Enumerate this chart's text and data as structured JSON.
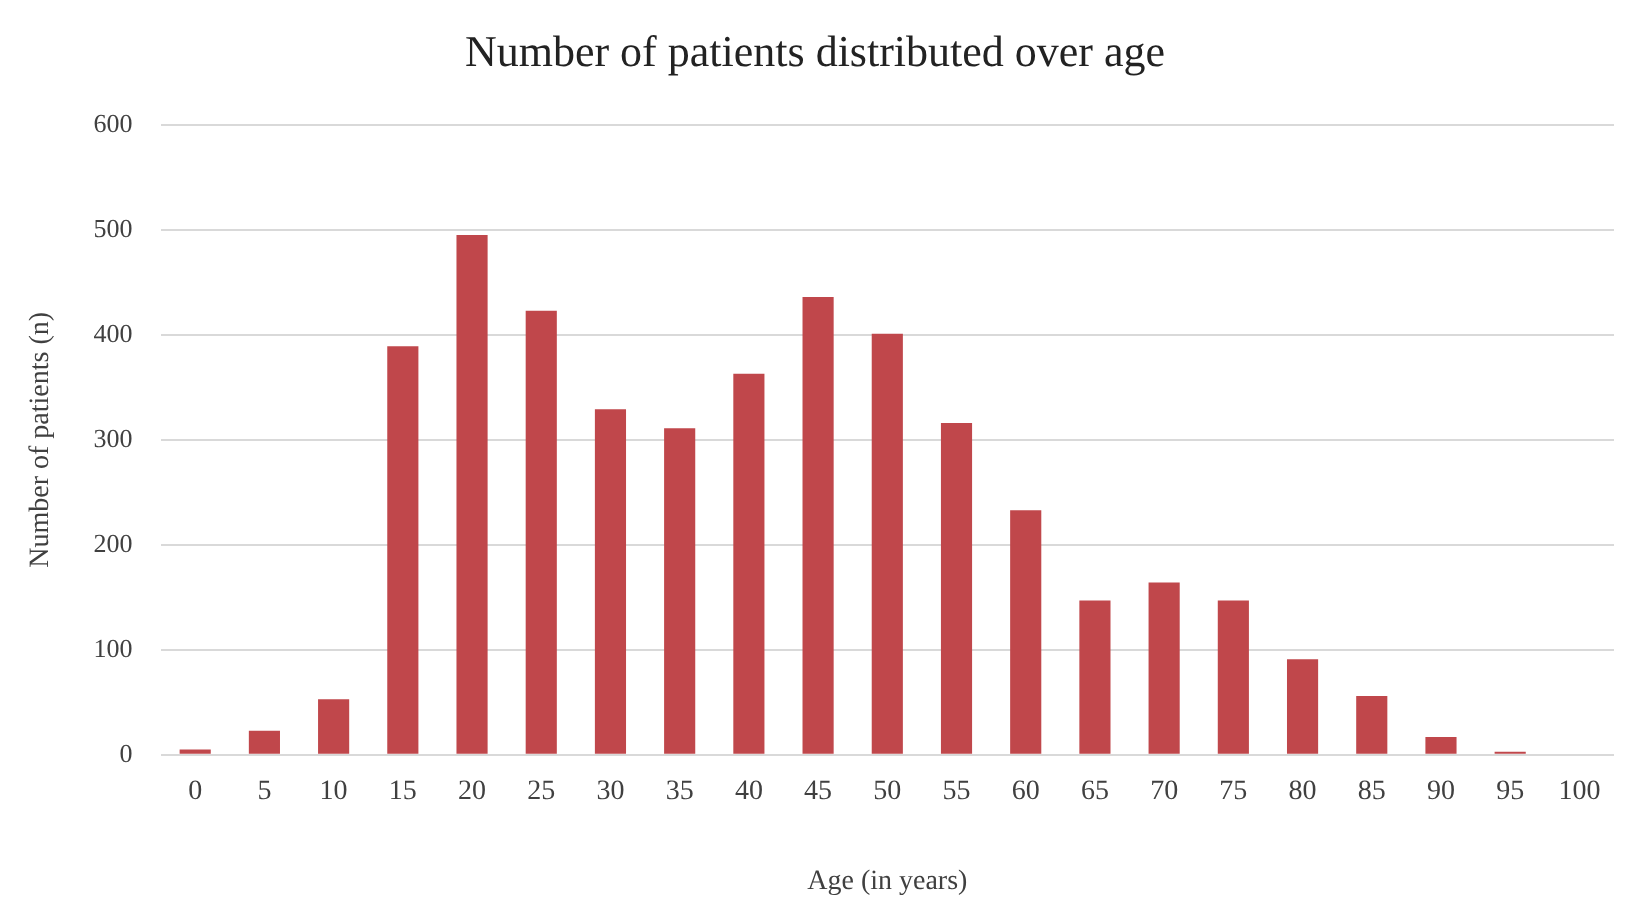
{
  "chart_data": {
    "type": "bar",
    "title": "Number of patients distributed over age",
    "xlabel": "Age (in years)",
    "ylabel": "Number of patients (n)",
    "categories": [
      "0",
      "5",
      "10",
      "15",
      "20",
      "25",
      "30",
      "35",
      "40",
      "45",
      "50",
      "55",
      "60",
      "65",
      "70",
      "75",
      "80",
      "85",
      "90",
      "95",
      "100"
    ],
    "values": [
      5,
      23,
      53,
      389,
      495,
      423,
      329,
      311,
      363,
      436,
      401,
      316,
      233,
      147,
      164,
      147,
      91,
      56,
      17,
      3,
      0
    ],
    "color": "#c0474b",
    "ylim": [
      0,
      600
    ],
    "yticks": [
      0,
      100,
      200,
      300,
      400,
      500,
      600
    ],
    "grid": "y",
    "legend": false
  }
}
